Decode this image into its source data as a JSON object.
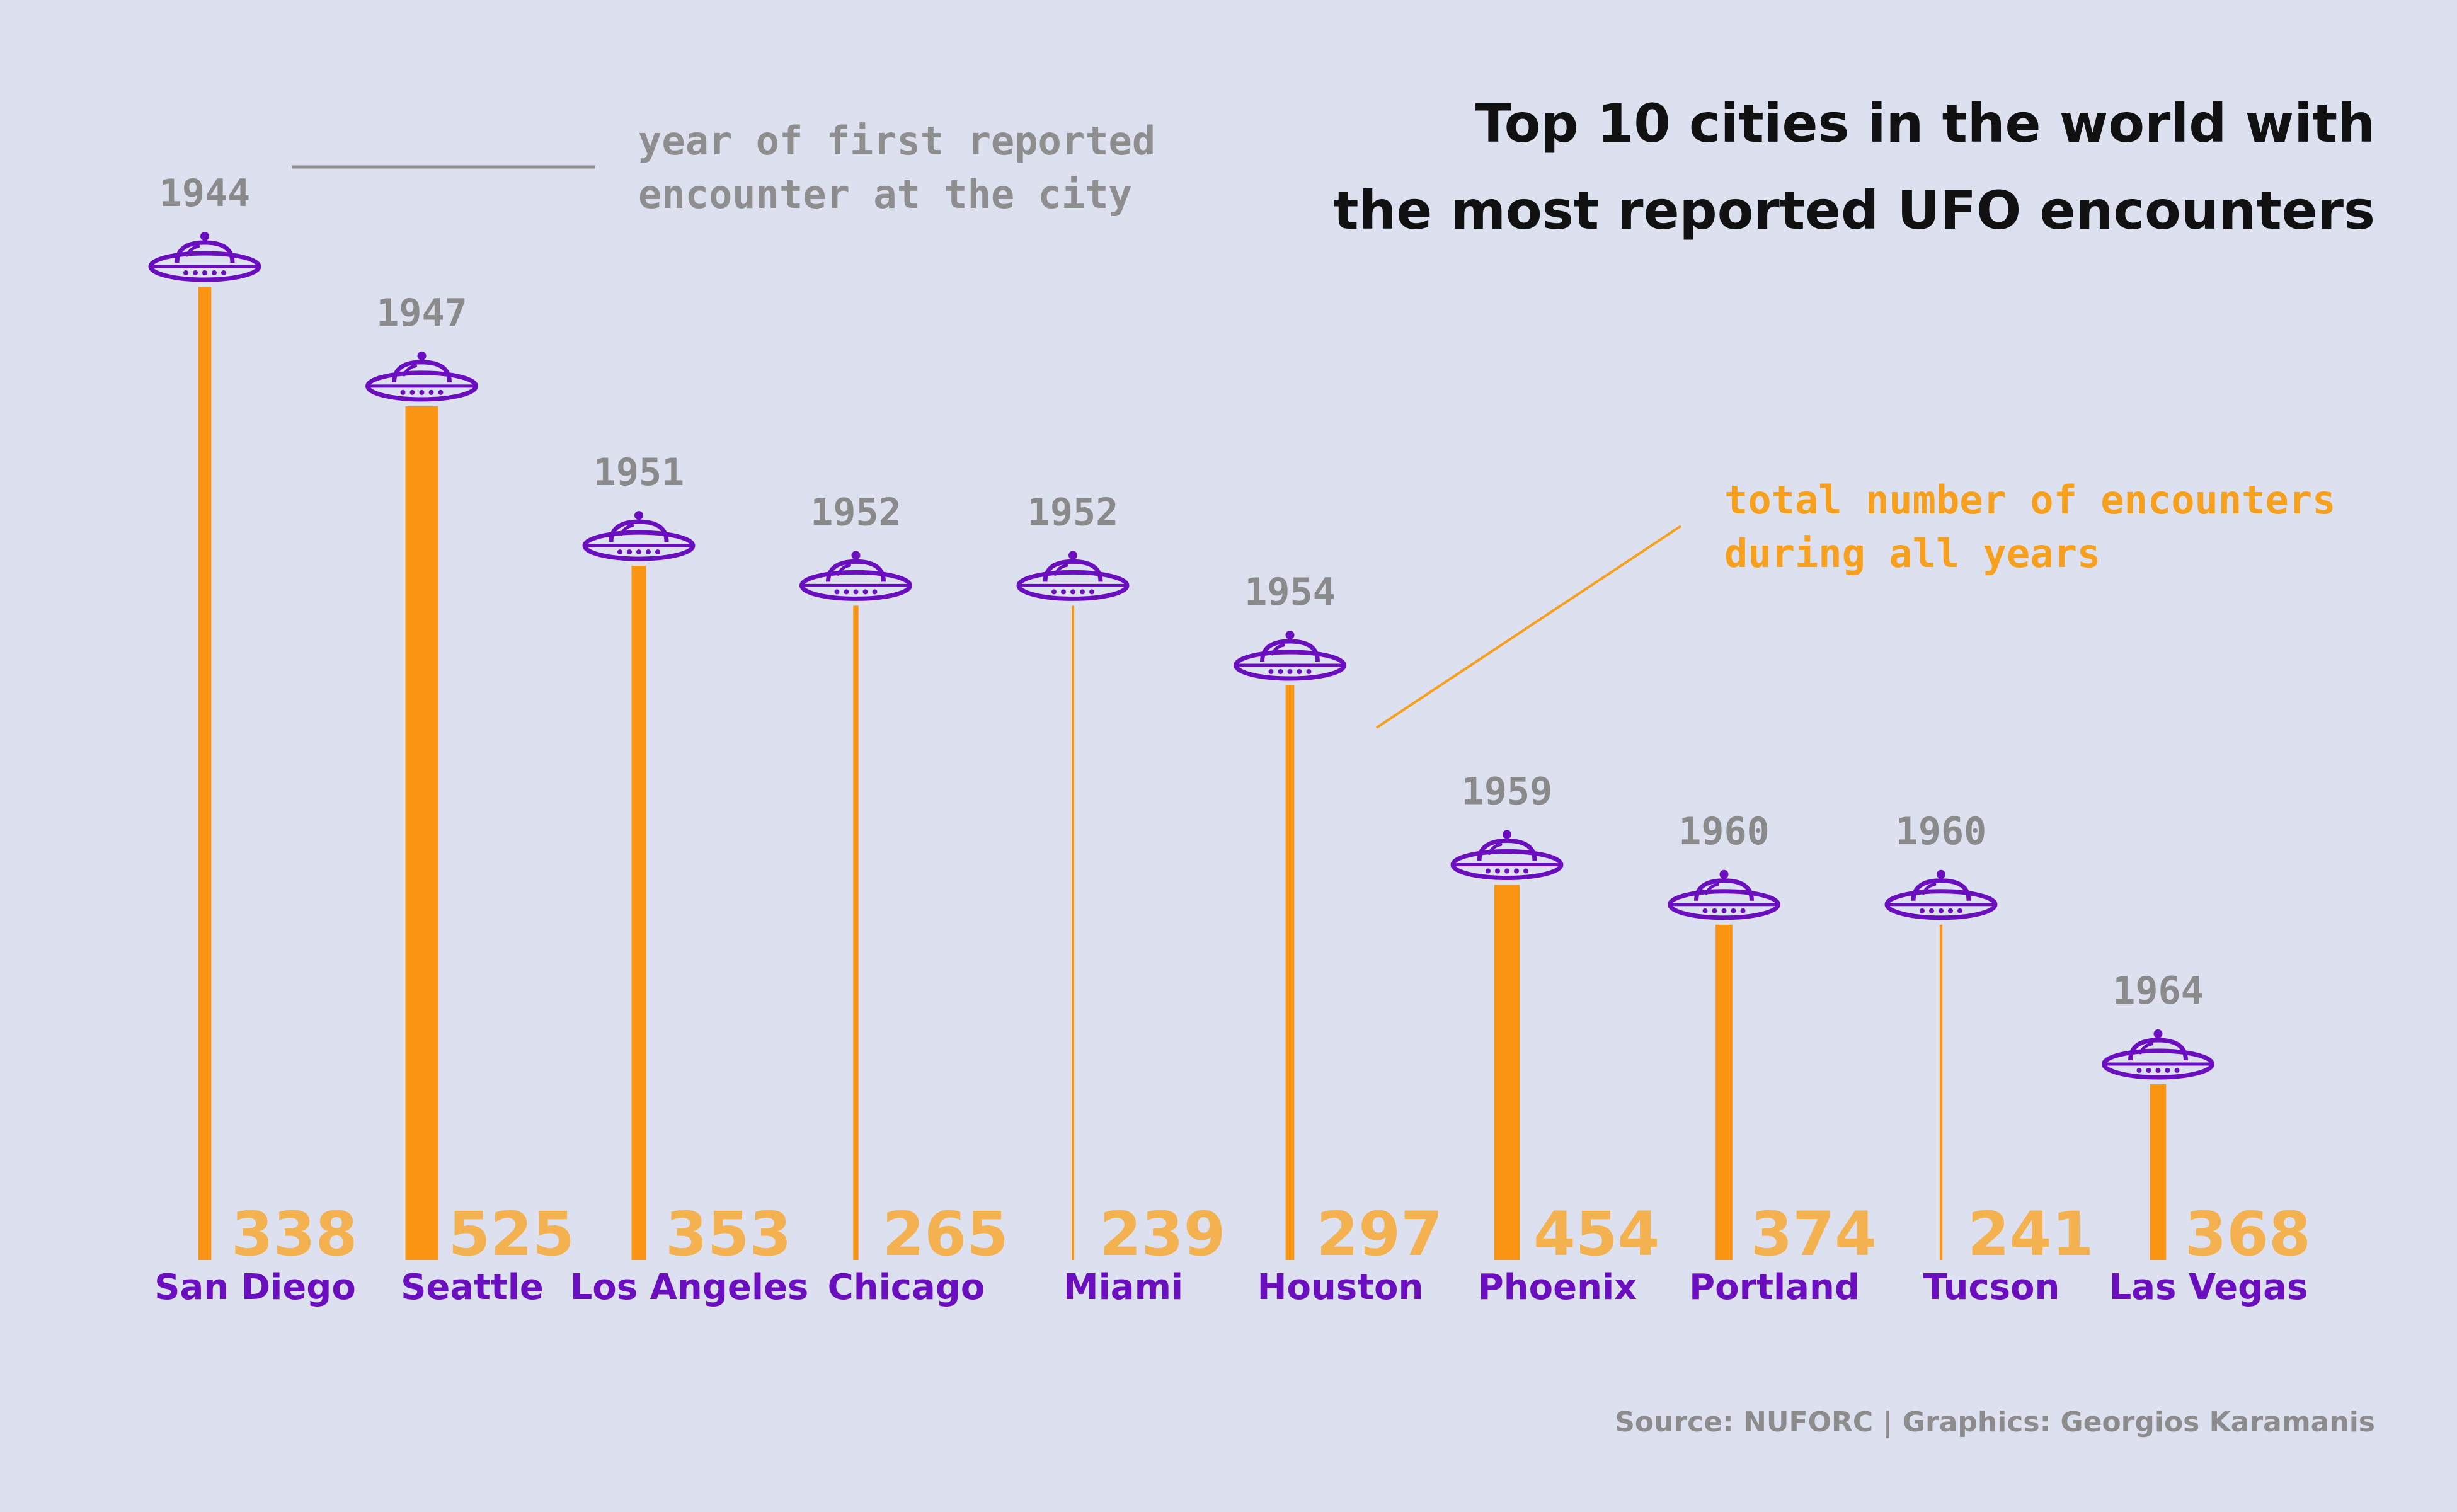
{
  "title_lines": [
    "Top 10 cities in the world with",
    "the most reported UFO encounters"
  ],
  "annotations": {
    "year_note": [
      "year of first reported",
      "encounter at the city"
    ],
    "total_note": [
      "total number of encounters",
      "during all years"
    ]
  },
  "caption": "Source: NUFORC | Graphics: Georgios Karamanis",
  "colors": {
    "background": "#dce0ef",
    "bar": "#fa9514",
    "value_text": "#f4b150",
    "city_text": "#6a0ec0",
    "ufo": "#6a0ec0",
    "year_text": "#8a8a8a",
    "title_text": "#111111"
  },
  "icon": "ufo-icon",
  "chart_data": {
    "type": "bar",
    "categories": [
      "San Diego",
      "Seattle",
      "Los Angeles",
      "Chicago",
      "Miami",
      "Houston",
      "Phoenix",
      "Portland",
      "Tucson",
      "Las Vegas"
    ],
    "first_year": [
      1944,
      1947,
      1951,
      1952,
      1952,
      1954,
      1959,
      1960,
      1960,
      1964
    ],
    "values": [
      338,
      525,
      353,
      265,
      239,
      297,
      454,
      374,
      241,
      368
    ],
    "year_axis_inverted": true,
    "bar_height_encodes": "year of first reported encounter (earlier = taller)",
    "bar_width_encodes": "total number of encounters"
  }
}
